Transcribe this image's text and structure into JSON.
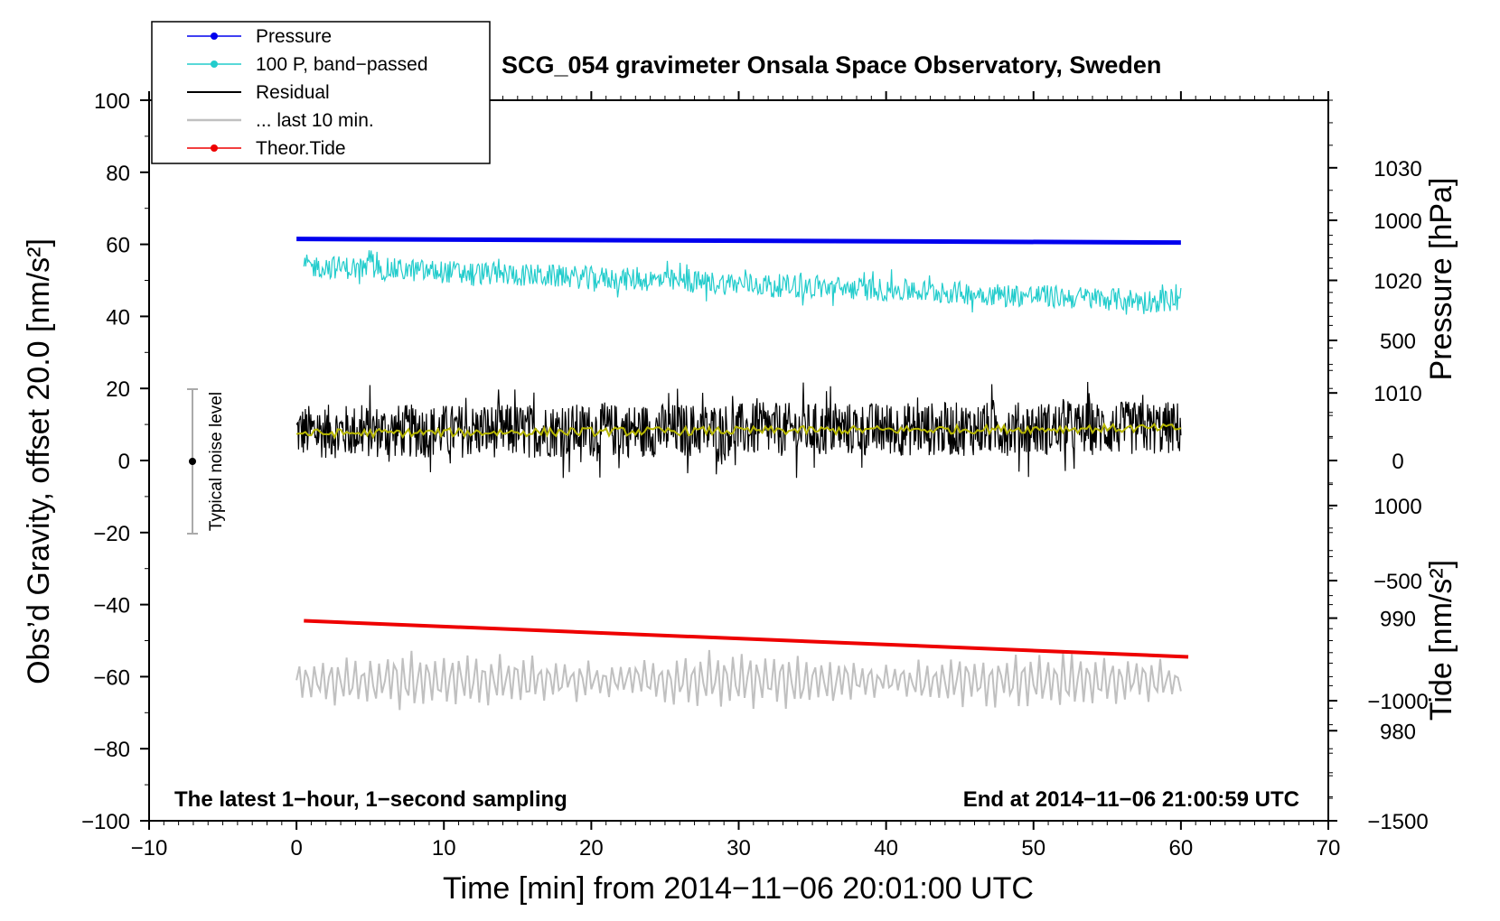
{
  "chart_data": {
    "type": "line",
    "title": "SCG_054 gravimeter Onsala Space Observatory, Sweden",
    "xlabel": "Time [min] from 2014−11−06 20:01:00 UTC",
    "ylabel_left": "Obs’d Gravity, offset 20.0 [nm/s²]",
    "ylabel_right_top": "Pressure [hPa]",
    "ylabel_right_bottom": "Tide [nm/s²]",
    "xlim": [
      -10,
      70
    ],
    "ylim": [
      -100,
      100
    ],
    "pressure_axis_range": [
      972,
      1036
    ],
    "tide_axis_range": [
      -1500,
      1500
    ],
    "x_ticks": [
      -10,
      0,
      10,
      20,
      30,
      40,
      50,
      60,
      70
    ],
    "x_tick_labels": [
      "−10",
      "0",
      "10",
      "20",
      "30",
      "40",
      "50",
      "60",
      "70"
    ],
    "y_ticks": [
      -100,
      -80,
      -60,
      -40,
      -20,
      0,
      20,
      40,
      60,
      80,
      100
    ],
    "y_tick_labels": [
      "−100",
      "−80",
      "−60",
      "−40",
      "−20",
      "0",
      "20",
      "40",
      "60",
      "80",
      "100"
    ],
    "pressure_ticks": [
      980,
      990,
      1000,
      1010,
      1020,
      1030
    ],
    "pressure_tick_labels": [
      "980",
      "990",
      "1000",
      "1010",
      "1020",
      "1030"
    ],
    "tide_ticks": [
      -1500,
      -1000,
      -500,
      0,
      500,
      1000
    ],
    "tide_tick_labels": [
      "−1500",
      "−1000",
      "−500",
      "0",
      "500",
      "1000"
    ],
    "notes": {
      "left": "The latest 1−hour, 1−second sampling",
      "right": "End at 2014−11−06 21:00:59 UTC"
    },
    "noise_bar": {
      "x": -7,
      "center": 0,
      "low": -20,
      "high": 20,
      "label": "Typical noise level"
    },
    "legend": [
      {
        "label": "Pressure",
        "color": "#0000ee",
        "marker": true
      },
      {
        "label": "100 P, band−passed",
        "color": "#22cccc",
        "marker": true
      },
      {
        "label": "Residual",
        "color": "#000000",
        "marker": false
      },
      {
        "label": "... last 10 min.",
        "color": "#c0c0c0",
        "marker": false
      },
      {
        "label": "Theor.Tide",
        "color": "#ee0000",
        "marker": true
      }
    ],
    "series": [
      {
        "name": "Pressure",
        "color": "#0000ee",
        "kind": "line",
        "x": [
          0,
          60
        ],
        "y": [
          61.5,
          60.5
        ]
      },
      {
        "name": "100 P, band−passed",
        "color": "#22cccc",
        "kind": "noise",
        "x_range": [
          0.5,
          60
        ],
        "trend": [
          54,
          44
        ],
        "amplitude": 3.2
      },
      {
        "name": "Residual",
        "color": "#000000",
        "kind": "noise",
        "x_range": [
          0,
          60
        ],
        "trend": [
          8,
          9
        ],
        "amplitude": 7.5
      },
      {
        "name": "Residual (smoothed)",
        "color": "#b8b800",
        "kind": "noise",
        "x_range": [
          0,
          60
        ],
        "trend": [
          7.5,
          9
        ],
        "amplitude": 1.2
      },
      {
        "name": "... last 10 min.",
        "color": "#c0c0c0",
        "kind": "oscillation",
        "x_range": [
          0,
          60
        ],
        "trend": [
          -61,
          -61
        ],
        "amplitude": 7
      },
      {
        "name": "Theor.Tide",
        "color": "#ee0000",
        "kind": "line",
        "x": [
          0.5,
          60.5
        ],
        "y": [
          -44.5,
          -54.5
        ]
      }
    ]
  }
}
